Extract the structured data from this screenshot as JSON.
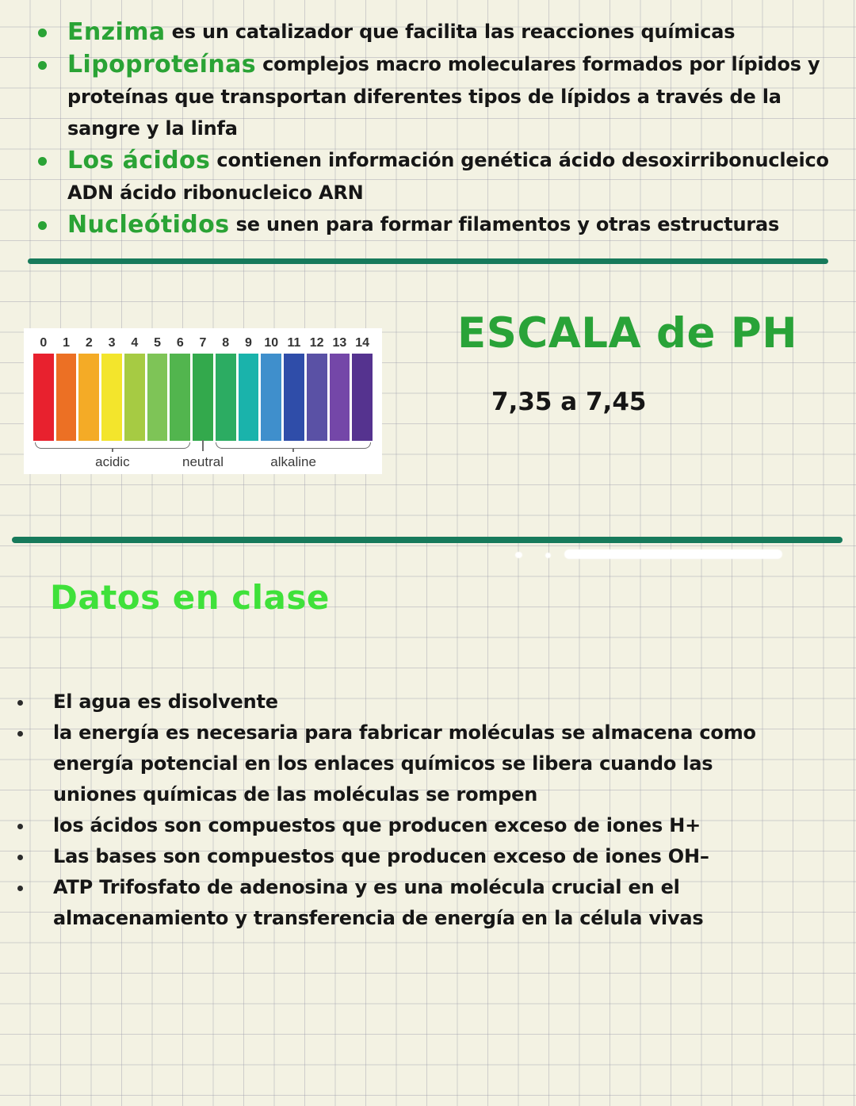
{
  "colors": {
    "term_green": "#2aa335",
    "title_green": "#29a338",
    "bright_green": "#3fe13a",
    "divider_teal": "#177a5b",
    "ink": "#161616"
  },
  "definitions": {
    "items": [
      {
        "term": "Enzima",
        "text": "es un catalizador que facilita las reacciones químicas"
      },
      {
        "term": "Lipoproteínas",
        "text": "complejos macro moleculares formados por lípidos y proteínas que transportan diferentes tipos de lípidos a través de la sangre y la linfa"
      },
      {
        "term": "Los ácidos",
        "text": "contienen información genética ácido desoxirribonucleico ADN ácido ribonucleico ARN"
      },
      {
        "term": "Nucleótidos",
        "text": "se unen para formar filamentos y otras estructuras"
      }
    ]
  },
  "ph_section": {
    "title": "ESCALA de PH",
    "range_note": "7,35 a 7,45",
    "chart_data": {
      "type": "scale",
      "title": "pH scale 0-14",
      "categories": [
        "0",
        "1",
        "2",
        "3",
        "4",
        "5",
        "6",
        "7",
        "8",
        "9",
        "10",
        "11",
        "12",
        "13",
        "14"
      ],
      "colors": [
        "#e8212e",
        "#ec7024",
        "#f4ab26",
        "#f3e52c",
        "#a6cb43",
        "#7ec457",
        "#52b54e",
        "#33a94c",
        "#2cac62",
        "#1ab3ab",
        "#3f8fcc",
        "#2f4da9",
        "#5a51a5",
        "#7447a8",
        "#55338f"
      ],
      "zones": [
        {
          "label": "acidic",
          "from": 0,
          "to": 6
        },
        {
          "label": "neutral",
          "from": 7,
          "to": 7
        },
        {
          "label": "alkaline",
          "from": 8,
          "to": 14
        }
      ]
    }
  },
  "class_notes": {
    "heading": "Datos en clase",
    "items": [
      "El agua es disolvente",
      "la energía es necesaria para fabricar moléculas se almacena como energía potencial en los enlaces químicos se libera cuando las uniones químicas de las moléculas se rompen",
      "los ácidos son compuestos que producen exceso de iones H+",
      "Las bases son compuestos que producen exceso de iones OH–",
      "ATP Trifosfato de adenosina y es una molécula crucial en el almacenamiento y transferencia de energía en la célula vivas"
    ]
  }
}
